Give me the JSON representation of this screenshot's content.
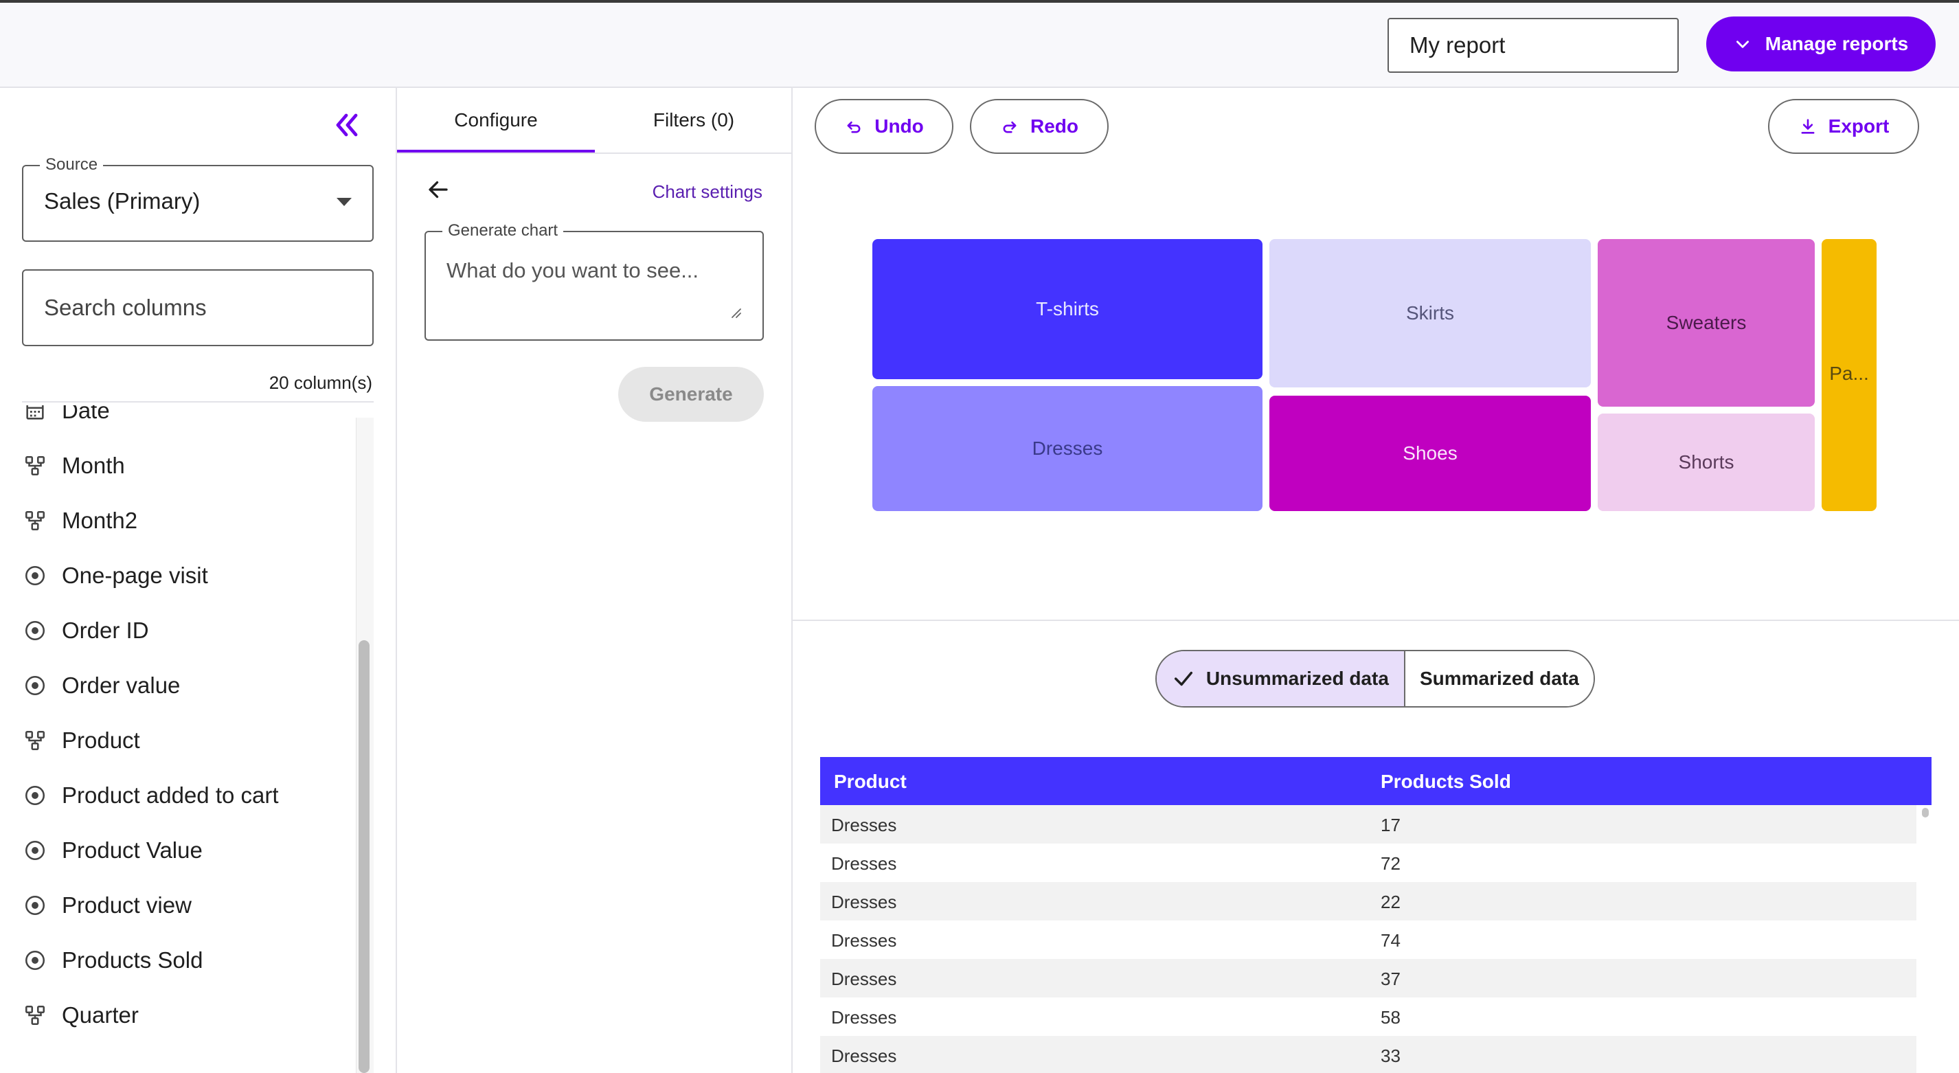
{
  "header": {
    "report_name": "My report",
    "manage_label": "Manage reports"
  },
  "left_panel": {
    "source_label": "Source",
    "source_value": "Sales (Primary)",
    "search_placeholder": "Search columns",
    "column_count": "20 column(s)",
    "columns": [
      {
        "label": "Date",
        "icon": "calendar-icon"
      },
      {
        "label": "Month",
        "icon": "dimension-icon"
      },
      {
        "label": "Month2",
        "icon": "dimension-icon"
      },
      {
        "label": "One-page visit",
        "icon": "metric-icon"
      },
      {
        "label": "Order ID",
        "icon": "metric-icon"
      },
      {
        "label": "Order value",
        "icon": "metric-icon"
      },
      {
        "label": "Product",
        "icon": "dimension-icon"
      },
      {
        "label": "Product added to cart",
        "icon": "metric-icon"
      },
      {
        "label": "Product Value",
        "icon": "metric-icon"
      },
      {
        "label": "Product view",
        "icon": "metric-icon"
      },
      {
        "label": "Products Sold",
        "icon": "metric-icon"
      },
      {
        "label": "Quarter",
        "icon": "dimension-icon"
      }
    ]
  },
  "mid_panel": {
    "tabs": [
      {
        "label": "Configure"
      },
      {
        "label": "Filters (0)"
      }
    ],
    "chart_settings": "Chart settings",
    "generate_label": "Generate chart",
    "generate_placeholder": "What do you want to see...",
    "generate_button": "Generate"
  },
  "toolbar": {
    "undo": "Undo",
    "redo": "Redo",
    "export": "Export"
  },
  "chart_data": {
    "type": "treemap",
    "items": [
      {
        "label": "T-shirts",
        "color": "#4433ff"
      },
      {
        "label": "Dresses",
        "color": "#8f85ff"
      },
      {
        "label": "Skirts",
        "color": "#dcd9fb"
      },
      {
        "label": "Shoes",
        "color": "#c000c0"
      },
      {
        "label": "Sweaters",
        "color": "#d966d1"
      },
      {
        "label": "Shorts",
        "color": "#f0cdee"
      },
      {
        "label": "Pa...",
        "color": "#f5bb00"
      }
    ]
  },
  "data_toggle": {
    "unsummarized": "Unsummarized data",
    "summarized": "Summarized data"
  },
  "table": {
    "headers": [
      "Product",
      "Products Sold"
    ],
    "rows": [
      [
        "Dresses",
        "17"
      ],
      [
        "Dresses",
        "72"
      ],
      [
        "Dresses",
        "22"
      ],
      [
        "Dresses",
        "74"
      ],
      [
        "Dresses",
        "37"
      ],
      [
        "Dresses",
        "58"
      ],
      [
        "Dresses",
        "33"
      ]
    ]
  },
  "colors": {
    "accent": "#7000f0",
    "table_header": "#4433ff"
  }
}
